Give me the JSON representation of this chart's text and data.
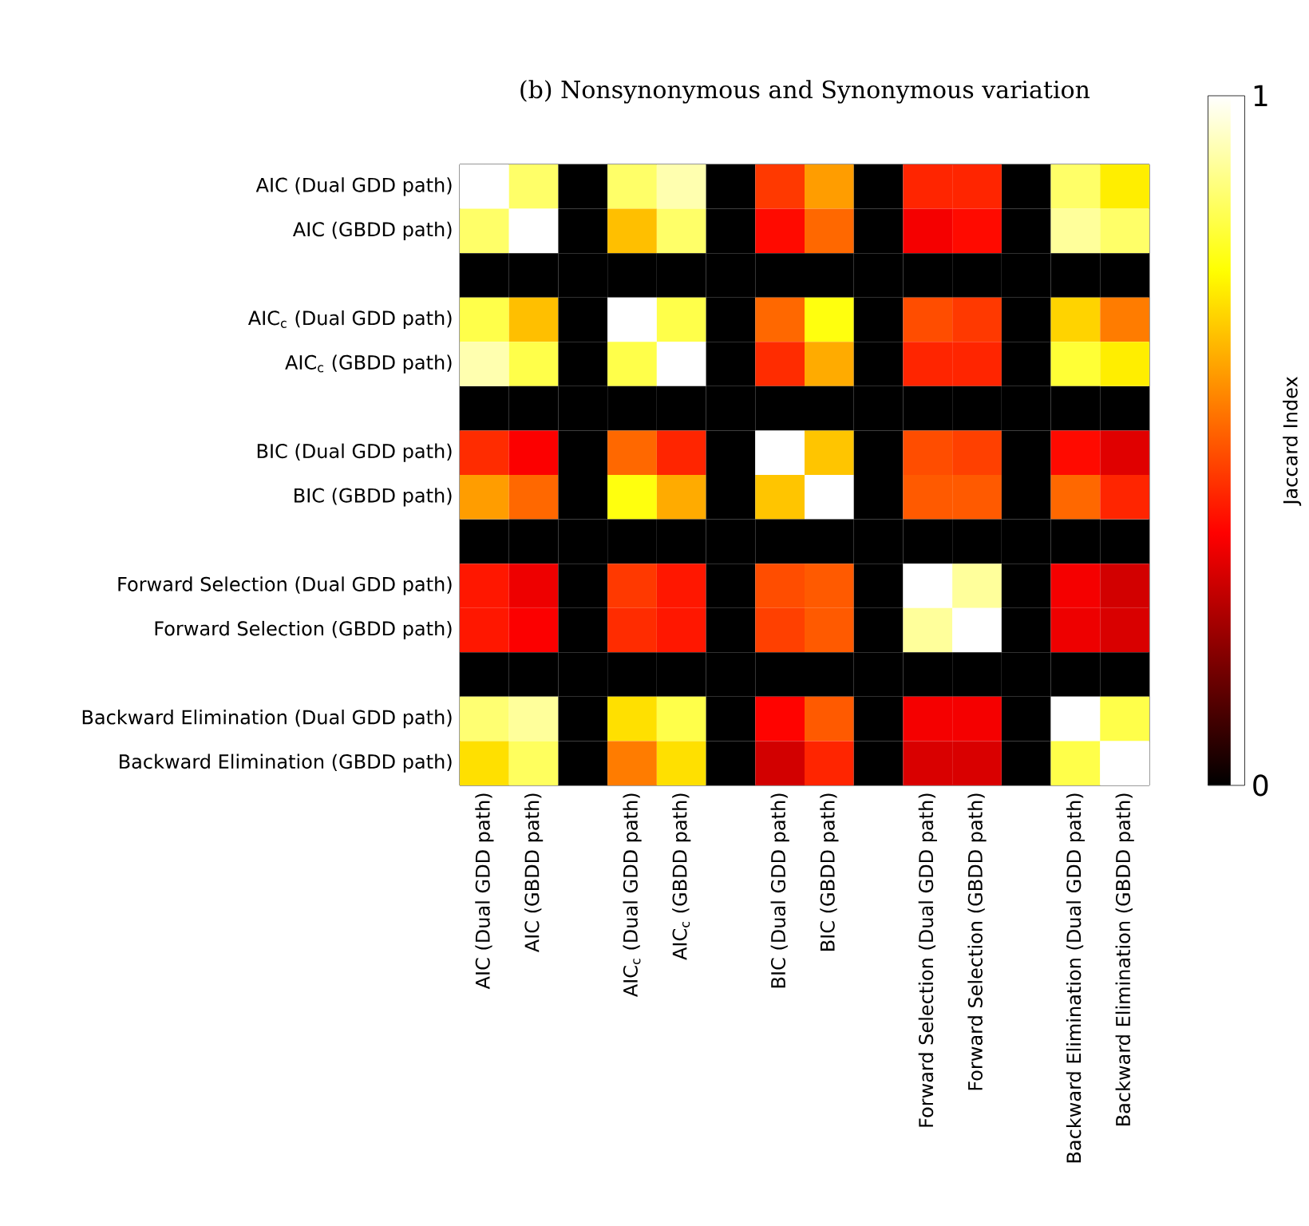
{
  "chart_data": {
    "type": "heatmap",
    "title": "(b) Nonsynonymous and Synonymous variation",
    "clabel": "Jaccard Index",
    "categories": [
      "AIC (Dual GDD path)",
      "AIC (GBDD path)",
      null,
      "AIC$_{c}$ (Dual GDD path)",
      "AIC$_{c}$ (GBDD path)",
      null,
      "BIC (Dual GDD path)",
      "BIC (GBDD path)",
      null,
      "Forward Selection (Dual GDD path)",
      "Forward Selection (GBDD path)",
      null,
      "Backward Elimination (Dual GDD path)",
      "Backward Elimination (GBDD path)"
    ],
    "y_categories": [
      "AIC (Dual GDD path)",
      "AIC (GBDD path)",
      null,
      "AIC$_{c}$ (Dual GDD path)",
      "AIC$_{c}$ (GBDD path)",
      null,
      "BIC (Dual GDD path)",
      "BIC (GBDD path)",
      null,
      "Forward Selection (Dual GDD path)",
      "Forward Selection (GBDD path)",
      null,
      "Backward Elimination (Dual GDD path)",
      "Backward Elimination (GBDD path)"
    ],
    "cells": [
      [
        1.0,
        0.85,
        0,
        0.85,
        0.92,
        0,
        0.45,
        0.6,
        0,
        0.42,
        0.42,
        0,
        0.85,
        0.72
      ],
      [
        0.85,
        1.0,
        0,
        0.65,
        0.85,
        0,
        0.38,
        0.52,
        0,
        0.35,
        0.38,
        0,
        0.9,
        0.85
      ],
      [
        0,
        0,
        0,
        0,
        0,
        0,
        0,
        0,
        0,
        0,
        0,
        0,
        0,
        0
      ],
      [
        0.82,
        0.65,
        0,
        1.0,
        0.82,
        0,
        0.52,
        0.76,
        0,
        0.48,
        0.45,
        0,
        0.68,
        0.55
      ],
      [
        0.92,
        0.82,
        0,
        0.82,
        1.0,
        0,
        0.43,
        0.62,
        0,
        0.42,
        0.42,
        0,
        0.8,
        0.72
      ],
      [
        0,
        0,
        0,
        0,
        0,
        0,
        0,
        0,
        0,
        0,
        0,
        0,
        0,
        0
      ],
      [
        0.43,
        0.36,
        0,
        0.52,
        0.42,
        0,
        1.0,
        0.66,
        0,
        0.48,
        0.46,
        0,
        0.38,
        0.32
      ],
      [
        0.6,
        0.52,
        0,
        0.76,
        0.62,
        0,
        0.66,
        1.0,
        0,
        0.5,
        0.5,
        0,
        0.52,
        0.42
      ],
      [
        0,
        0,
        0,
        0,
        0,
        0,
        0,
        0,
        0,
        0,
        0,
        0,
        0,
        0
      ],
      [
        0.4,
        0.34,
        0,
        0.45,
        0.4,
        0,
        0.48,
        0.5,
        0,
        1.0,
        0.9,
        0,
        0.35,
        0.3
      ],
      [
        0.4,
        0.36,
        0,
        0.43,
        0.4,
        0,
        0.46,
        0.5,
        0,
        0.9,
        1.0,
        0,
        0.34,
        0.31
      ],
      [
        0,
        0,
        0,
        0,
        0,
        0,
        0,
        0,
        0,
        0,
        0,
        0,
        0,
        0
      ],
      [
        0.86,
        0.9,
        0,
        0.7,
        0.82,
        0,
        0.37,
        0.5,
        0,
        0.35,
        0.35,
        0,
        1.0,
        0.82
      ],
      [
        0.7,
        0.84,
        0,
        0.55,
        0.7,
        0,
        0.3,
        0.42,
        0,
        0.31,
        0.31,
        0,
        0.82,
        1.0
      ]
    ],
    "clim": [
      0,
      1
    ],
    "cticks": [
      0,
      1
    ]
  }
}
